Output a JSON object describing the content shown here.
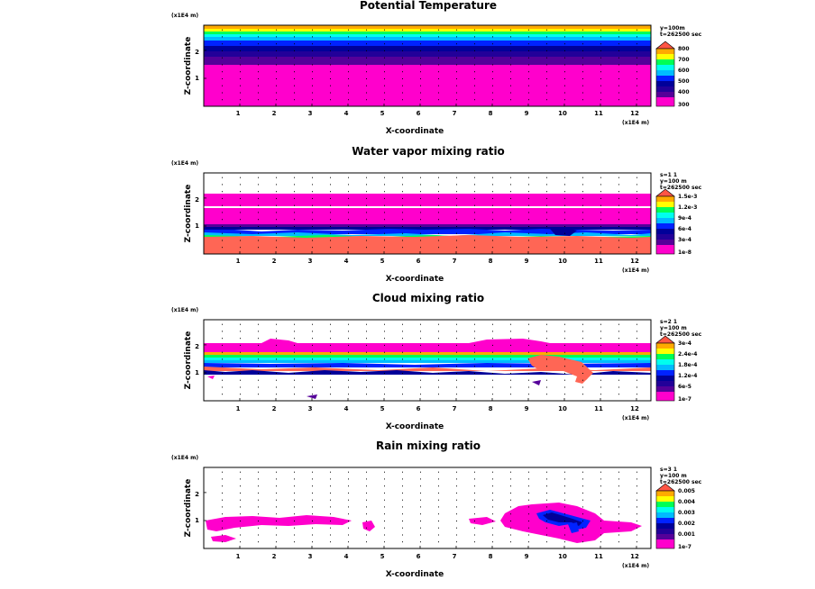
{
  "figure": {
    "colors": {
      "pink": "#ff00cc",
      "purple": "#550099",
      "navy": "#000099",
      "blue": "#0022ff",
      "cyan": "#00bbff",
      "aqua": "#00ffee",
      "green": "#00ff55",
      "yellow": "#ffff00",
      "orange": "#ffaa00",
      "red": "#ff5544",
      "salmon": "#ff6655"
    }
  },
  "chart_data": [
    {
      "type": "heatmap",
      "title": "Potential Temperature",
      "xlabel": "X-coordinate",
      "ylabel": "Z-coordinate",
      "x_unit": "(x1E4 m)",
      "z_unit": "(x1E4 m)",
      "xticks": [
        "1",
        "2",
        "3",
        "4",
        "5",
        "6",
        "7",
        "8",
        "9",
        "10",
        "11",
        "12"
      ],
      "zticks": [
        "1",
        "2"
      ],
      "xlim": [
        0,
        12.4
      ],
      "zlim": [
        0,
        2.9
      ],
      "info_lines": [
        "y=100m",
        "t=262500 sec"
      ],
      "colorbar": {
        "levels": [
          "300",
          "400",
          "500",
          "600",
          "700",
          "800"
        ]
      }
    },
    {
      "type": "heatmap",
      "title": "Water vapor mixing ratio",
      "xlabel": "X-coordinate",
      "ylabel": "Z-coordinate",
      "x_unit": "(x1E4 m)",
      "z_unit": "(x1E4 m)",
      "xticks": [
        "1",
        "2",
        "3",
        "4",
        "5",
        "6",
        "7",
        "8",
        "9",
        "10",
        "11",
        "12"
      ],
      "zticks": [
        "1",
        "2"
      ],
      "xlim": [
        0,
        12.4
      ],
      "zlim": [
        0,
        2.9
      ],
      "info_lines": [
        "s=1 1",
        "y=100 m",
        "t=262500 sec"
      ],
      "colorbar": {
        "levels": [
          "1e-8",
          "3e-4",
          "6e-4",
          "9e-4",
          "1.2e-3",
          "1.5e-3"
        ]
      }
    },
    {
      "type": "heatmap",
      "title": "Cloud mixing ratio",
      "xlabel": "X-coordinate",
      "ylabel": "Z-coordinate",
      "x_unit": "(x1E4 m)",
      "z_unit": "(x1E4 m)",
      "xticks": [
        "1",
        "2",
        "3",
        "4",
        "5",
        "6",
        "7",
        "8",
        "9",
        "10",
        "11",
        "12"
      ],
      "zticks": [
        "1",
        "2"
      ],
      "xlim": [
        0,
        12.4
      ],
      "zlim": [
        0,
        2.9
      ],
      "info_lines": [
        "s=2 1",
        "y=100 m",
        "t=262500 sec"
      ],
      "colorbar": {
        "levels": [
          "1e-7",
          "6e-5",
          "1.2e-4",
          "1.8e-4",
          "2.4e-4",
          "3e-4"
        ]
      }
    },
    {
      "type": "heatmap",
      "title": "Rain mixing ratio",
      "xlabel": "X-coordinate",
      "ylabel": "Z-coordinate",
      "x_unit": "(x1E4 m)",
      "z_unit": "(x1E4 m)",
      "xticks": [
        "1",
        "2",
        "3",
        "4",
        "5",
        "6",
        "7",
        "8",
        "9",
        "10",
        "11",
        "12"
      ],
      "zticks": [
        "1",
        "2"
      ],
      "xlim": [
        0,
        12.4
      ],
      "zlim": [
        0,
        2.9
      ],
      "info_lines": [
        "s=3 1",
        "y=100 m",
        "t=262500 sec"
      ],
      "colorbar": {
        "levels": [
          "1e-7",
          "0.001",
          "0.002",
          "0.003",
          "0.004",
          "0.005"
        ]
      }
    }
  ]
}
